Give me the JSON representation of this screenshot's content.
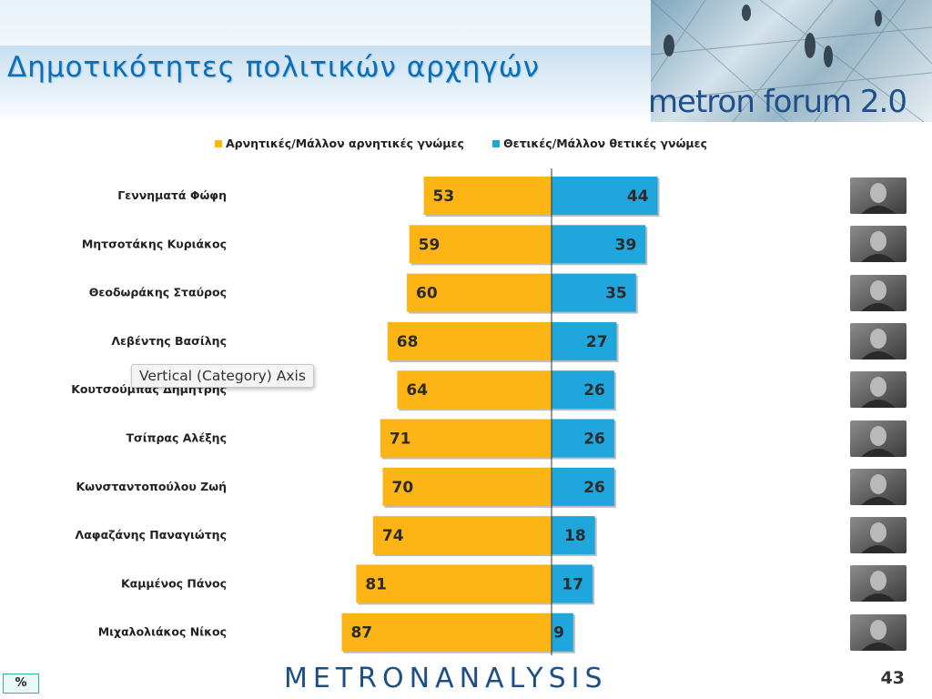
{
  "header": {
    "title": "Δημοτικότητες πολιτικών αρχηγών",
    "banner_text": "metron forum 2.0"
  },
  "legend": {
    "negative": "Αρνητικές/Μάλλον αρνητικές γνώμες",
    "positive": "Θετικές/Μάλλον θετικές γνώμες"
  },
  "colors": {
    "negative": "#fdb515",
    "positive": "#1ea6dd",
    "title": "#0b6fb8"
  },
  "tooltip": "Vertical (Category) Axis",
  "footer": {
    "logo": "METRONANALYSIS",
    "page_number": "43",
    "unit": "%"
  },
  "photos": [
    "leader-photo",
    "leader-photo",
    "leader-photo",
    "leader-photo",
    "leader-photo",
    "leader-photo",
    "leader-photo",
    "leader-photo",
    "leader-photo",
    "leader-photo"
  ],
  "chart_data": {
    "type": "bar",
    "orientation": "horizontal-diverging",
    "categories": [
      "Γεννηματά Φώφη",
      "Μητσοτάκης Κυριάκος",
      "Θεοδωράκης Σταύρος",
      "Λεβέντης Βασίλης",
      "Κουτσούμπας Δημήτρης",
      "Τσίπρας Αλέξης",
      "Κωνσταντοπούλου Ζωή",
      "Λαφαζάνης Παναγιώτης",
      "Καμμένος Πάνος",
      "Μιχαλολιάκος Νίκος"
    ],
    "series": [
      {
        "name": "Αρνητικές/Μάλλον αρνητικές γνώμες",
        "values": [
          53,
          59,
          60,
          68,
          64,
          71,
          70,
          74,
          81,
          87
        ]
      },
      {
        "name": "Θετικές/Μάλλον θετικές γνώμες",
        "values": [
          44,
          39,
          35,
          27,
          26,
          26,
          26,
          18,
          17,
          9
        ]
      }
    ],
    "legend_position": "top",
    "grid": false,
    "unit": "%"
  }
}
